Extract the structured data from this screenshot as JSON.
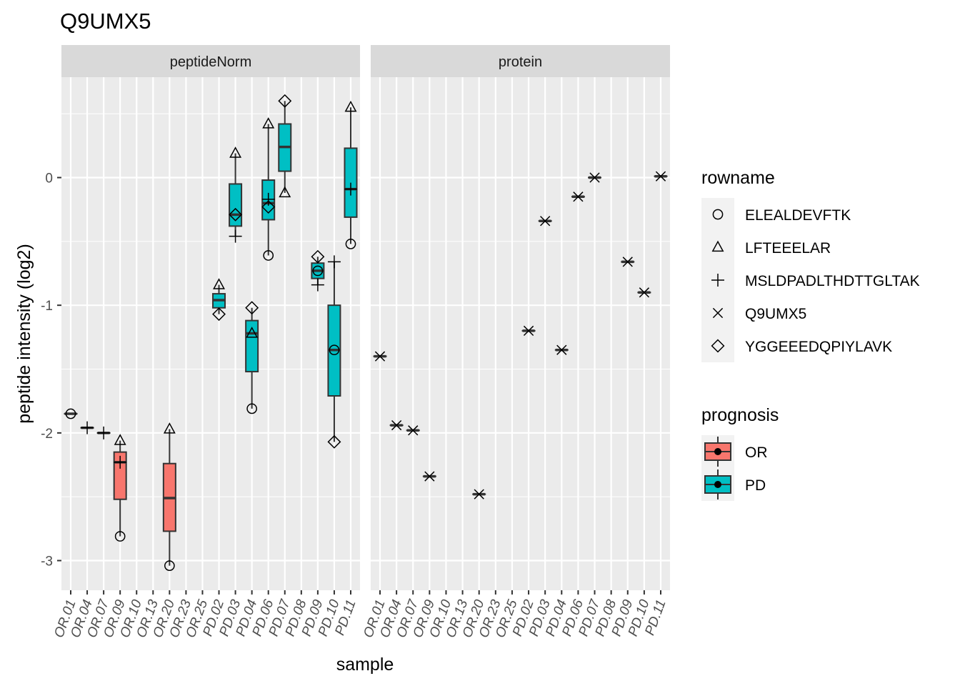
{
  "chart_data": {
    "type": "box",
    "title": "Q9UMX5",
    "xlabel": "sample",
    "ylabel": "peptide intensity (log2)",
    "y_ticks": [
      0,
      -1,
      -2,
      -3
    ],
    "ylim": [
      -3.2,
      0.8
    ],
    "categories": [
      "OR.01",
      "OR.04",
      "OR.07",
      "OR.09",
      "OR.10",
      "OR.13",
      "OR.20",
      "OR.23",
      "OR.25",
      "PD.02",
      "PD.03",
      "PD.04",
      "PD.06",
      "PD.07",
      "PD.08",
      "PD.09",
      "PD.10",
      "PD.11"
    ],
    "panels": [
      {
        "name": "peptideNorm",
        "boxes": [
          {
            "sample": "OR.01",
            "prognosis": "OR",
            "q1": -1.85,
            "median": -1.85,
            "q3": -1.85,
            "lower": -1.85,
            "upper": -1.85
          },
          {
            "sample": "OR.04",
            "prognosis": "OR",
            "q1": -1.96,
            "median": -1.96,
            "q3": -1.96,
            "lower": -1.96,
            "upper": -1.96
          },
          {
            "sample": "OR.07",
            "prognosis": "OR",
            "q1": -2.0,
            "median": -2.0,
            "q3": -2.0,
            "lower": -2.0,
            "upper": -2.0
          },
          {
            "sample": "OR.09",
            "prognosis": "OR",
            "q1": -2.52,
            "median": -2.23,
            "q3": -2.15,
            "lower": -2.81,
            "upper": -2.06
          },
          {
            "sample": "OR.20",
            "prognosis": "OR",
            "q1": -2.77,
            "median": -2.51,
            "q3": -2.24,
            "lower": -3.04,
            "upper": -1.97
          },
          {
            "sample": "PD.02",
            "prognosis": "PD",
            "q1": -1.02,
            "median": -0.96,
            "q3": -0.91,
            "lower": -1.07,
            "upper": -0.84
          },
          {
            "sample": "PD.03",
            "prognosis": "PD",
            "q1": -0.38,
            "median": -0.29,
            "q3": -0.05,
            "lower": -0.46,
            "upper": 0.19
          },
          {
            "sample": "PD.04",
            "prognosis": "PD",
            "q1": -1.52,
            "median": -1.22,
            "q3": -1.12,
            "lower": -1.81,
            "upper": -1.02
          },
          {
            "sample": "PD.06",
            "prognosis": "PD",
            "q1": -0.33,
            "median": -0.2,
            "q3": -0.02,
            "lower": -0.61,
            "upper": 0.42
          },
          {
            "sample": "PD.07",
            "prognosis": "PD",
            "q1": 0.05,
            "median": 0.24,
            "q3": 0.42,
            "lower": -0.12,
            "upper": 0.6
          },
          {
            "sample": "PD.09",
            "prognosis": "PD",
            "q1": -0.79,
            "median": -0.73,
            "q3": -0.67,
            "lower": -0.84,
            "upper": -0.62
          },
          {
            "sample": "PD.10",
            "prognosis": "PD",
            "q1": -1.71,
            "median": -1.35,
            "q3": -1.0,
            "lower": -2.07,
            "upper": -0.66
          },
          {
            "sample": "PD.11",
            "prognosis": "PD",
            "q1": -0.31,
            "median": -0.09,
            "q3": 0.23,
            "lower": -0.52,
            "upper": 0.55
          }
        ],
        "points": [
          {
            "sample": "OR.01",
            "rowname": "ELEALDEVFTK",
            "y": -1.85
          },
          {
            "sample": "OR.04",
            "rowname": "MSLDPADLTHDTTGLTAK",
            "y": -1.96
          },
          {
            "sample": "OR.07",
            "rowname": "MSLDPADLTHDTTGLTAK",
            "y": -2.0
          },
          {
            "sample": "OR.09",
            "rowname": "ELEALDEVFTK",
            "y": -2.81
          },
          {
            "sample": "OR.09",
            "rowname": "LFTEEELAR",
            "y": -2.06
          },
          {
            "sample": "OR.09",
            "rowname": "MSLDPADLTHDTTGLTAK",
            "y": -2.23
          },
          {
            "sample": "OR.20",
            "rowname": "ELEALDEVFTK",
            "y": -3.04
          },
          {
            "sample": "OR.20",
            "rowname": "LFTEEELAR",
            "y": -1.97
          },
          {
            "sample": "PD.02",
            "rowname": "LFTEEELAR",
            "y": -0.84
          },
          {
            "sample": "PD.02",
            "rowname": "YGGEEEDQPIYLAVK",
            "y": -1.07
          },
          {
            "sample": "PD.03",
            "rowname": "LFTEEELAR",
            "y": 0.19
          },
          {
            "sample": "PD.03",
            "rowname": "MSLDPADLTHDTTGLTAK",
            "y": -0.46
          },
          {
            "sample": "PD.03",
            "rowname": "YGGEEEDQPIYLAVK",
            "y": -0.29
          },
          {
            "sample": "PD.04",
            "rowname": "ELEALDEVFTK",
            "y": -1.81
          },
          {
            "sample": "PD.04",
            "rowname": "LFTEEELAR",
            "y": -1.22
          },
          {
            "sample": "PD.04",
            "rowname": "YGGEEEDQPIYLAVK",
            "y": -1.02
          },
          {
            "sample": "PD.06",
            "rowname": "ELEALDEVFTK",
            "y": -0.61
          },
          {
            "sample": "PD.06",
            "rowname": "LFTEEELAR",
            "y": 0.42
          },
          {
            "sample": "PD.06",
            "rowname": "MSLDPADLTHDTTGLTAK",
            "y": -0.17
          },
          {
            "sample": "PD.06",
            "rowname": "YGGEEEDQPIYLAVK",
            "y": -0.23
          },
          {
            "sample": "PD.07",
            "rowname": "LFTEEELAR",
            "y": -0.12
          },
          {
            "sample": "PD.07",
            "rowname": "YGGEEEDQPIYLAVK",
            "y": 0.6
          },
          {
            "sample": "PD.09",
            "rowname": "ELEALDEVFTK",
            "y": -0.73
          },
          {
            "sample": "PD.09",
            "rowname": "MSLDPADLTHDTTGLTAK",
            "y": -0.84
          },
          {
            "sample": "PD.09",
            "rowname": "YGGEEEDQPIYLAVK",
            "y": -0.62
          },
          {
            "sample": "PD.10",
            "rowname": "ELEALDEVFTK",
            "y": -1.35
          },
          {
            "sample": "PD.10",
            "rowname": "MSLDPADLTHDTTGLTAK",
            "y": -0.66
          },
          {
            "sample": "PD.10",
            "rowname": "YGGEEEDQPIYLAVK",
            "y": -2.07
          },
          {
            "sample": "PD.11",
            "rowname": "ELEALDEVFTK",
            "y": -0.52
          },
          {
            "sample": "PD.11",
            "rowname": "LFTEEELAR",
            "y": 0.55
          },
          {
            "sample": "PD.11",
            "rowname": "MSLDPADLTHDTTGLTAK",
            "y": -0.09
          }
        ]
      },
      {
        "name": "protein",
        "boxes": [
          {
            "sample": "OR.01",
            "prognosis": "OR",
            "q1": -1.4,
            "median": -1.4,
            "q3": -1.4,
            "lower": -1.4,
            "upper": -1.4
          },
          {
            "sample": "OR.04",
            "prognosis": "OR",
            "q1": -1.94,
            "median": -1.94,
            "q3": -1.94,
            "lower": -1.94,
            "upper": -1.94
          },
          {
            "sample": "OR.07",
            "prognosis": "OR",
            "q1": -1.98,
            "median": -1.98,
            "q3": -1.98,
            "lower": -1.98,
            "upper": -1.98
          },
          {
            "sample": "OR.09",
            "prognosis": "OR",
            "q1": -2.34,
            "median": -2.34,
            "q3": -2.34,
            "lower": -2.34,
            "upper": -2.34
          },
          {
            "sample": "OR.20",
            "prognosis": "OR",
            "q1": -2.48,
            "median": -2.48,
            "q3": -2.48,
            "lower": -2.48,
            "upper": -2.48
          },
          {
            "sample": "PD.02",
            "prognosis": "PD",
            "q1": -1.2,
            "median": -1.2,
            "q3": -1.2,
            "lower": -1.2,
            "upper": -1.2
          },
          {
            "sample": "PD.03",
            "prognosis": "PD",
            "q1": -0.34,
            "median": -0.34,
            "q3": -0.34,
            "lower": -0.34,
            "upper": -0.34
          },
          {
            "sample": "PD.04",
            "prognosis": "PD",
            "q1": -1.35,
            "median": -1.35,
            "q3": -1.35,
            "lower": -1.35,
            "upper": -1.35
          },
          {
            "sample": "PD.06",
            "prognosis": "PD",
            "q1": -0.15,
            "median": -0.15,
            "q3": -0.15,
            "lower": -0.15,
            "upper": -0.15
          },
          {
            "sample": "PD.07",
            "prognosis": "PD",
            "q1": 0.0,
            "median": 0.0,
            "q3": 0.0,
            "lower": 0.0,
            "upper": 0.0
          },
          {
            "sample": "PD.09",
            "prognosis": "PD",
            "q1": -0.66,
            "median": -0.66,
            "q3": -0.66,
            "lower": -0.66,
            "upper": -0.66
          },
          {
            "sample": "PD.10",
            "prognosis": "PD",
            "q1": -0.9,
            "median": -0.9,
            "q3": -0.9,
            "lower": -0.9,
            "upper": -0.9
          },
          {
            "sample": "PD.11",
            "prognosis": "PD",
            "q1": 0.01,
            "median": 0.01,
            "q3": 0.01,
            "lower": 0.01,
            "upper": 0.01
          }
        ],
        "points": [
          {
            "sample": "OR.01",
            "rowname": "Q9UMX5",
            "y": -1.4
          },
          {
            "sample": "OR.04",
            "rowname": "Q9UMX5",
            "y": -1.94
          },
          {
            "sample": "OR.07",
            "rowname": "Q9UMX5",
            "y": -1.98
          },
          {
            "sample": "OR.09",
            "rowname": "Q9UMX5",
            "y": -2.34
          },
          {
            "sample": "OR.20",
            "rowname": "Q9UMX5",
            "y": -2.48
          },
          {
            "sample": "PD.02",
            "rowname": "Q9UMX5",
            "y": -1.2
          },
          {
            "sample": "PD.03",
            "rowname": "Q9UMX5",
            "y": -0.34
          },
          {
            "sample": "PD.04",
            "rowname": "Q9UMX5",
            "y": -1.35
          },
          {
            "sample": "PD.06",
            "rowname": "Q9UMX5",
            "y": -0.15
          },
          {
            "sample": "PD.07",
            "rowname": "Q9UMX5",
            "y": 0.0
          },
          {
            "sample": "PD.09",
            "rowname": "Q9UMX5",
            "y": -0.66
          },
          {
            "sample": "PD.10",
            "rowname": "Q9UMX5",
            "y": -0.9
          },
          {
            "sample": "PD.11",
            "rowname": "Q9UMX5",
            "y": 0.01
          }
        ]
      }
    ],
    "legends": {
      "rowname": {
        "title": "rowname",
        "items": [
          {
            "label": "ELEALDEVFTK",
            "shape": "circle"
          },
          {
            "label": "LFTEEELAR",
            "shape": "triangle"
          },
          {
            "label": "MSLDPADLTHDTTGLTAK",
            "shape": "plus"
          },
          {
            "label": "Q9UMX5",
            "shape": "cross"
          },
          {
            "label": "YGGEEEDQPIYLAVK",
            "shape": "diamond"
          }
        ]
      },
      "prognosis": {
        "title": "prognosis",
        "items": [
          {
            "label": "OR",
            "color": "#F8766D"
          },
          {
            "label": "PD",
            "color": "#00BFC4"
          }
        ]
      }
    },
    "colors": {
      "OR": "#F8766D",
      "PD": "#00BFC4",
      "panel_bg": "#EBEBEB",
      "strip_bg": "#D9D9D9",
      "grid": "#FFFFFF"
    },
    "grid": true,
    "legend_position": "right"
  }
}
